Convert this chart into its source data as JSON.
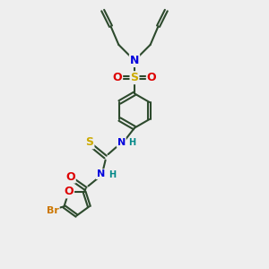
{
  "bg_color": "#eeeeee",
  "bond_color": "#2d4a2d",
  "bond_width": 1.5,
  "colors": {
    "N": "#0000dd",
    "O": "#dd0000",
    "S": "#ccaa00",
    "Br": "#cc7700",
    "NH": "#008888"
  },
  "fs": 9
}
